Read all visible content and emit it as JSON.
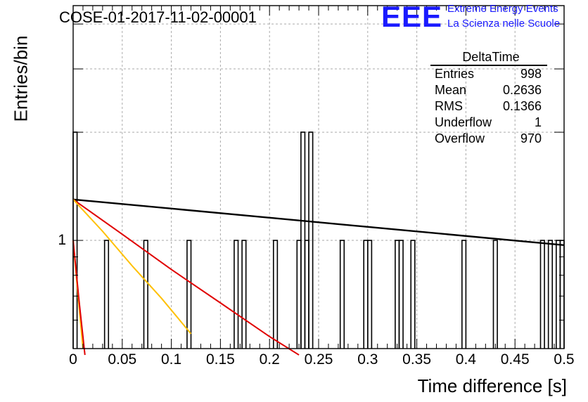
{
  "title": "COSE-01-2017-11-02-00001",
  "logo": {
    "text": "EEE",
    "line1": "Extreme Energy Events",
    "line2": "La Scienza nelle Scuole",
    "color": "#1a1aff"
  },
  "stats": {
    "title": "DeltaTime",
    "rows": [
      {
        "label": "Entries",
        "value": "998"
      },
      {
        "label": "Mean",
        "value": "0.2636"
      },
      {
        "label": "RMS",
        "value": "0.1366"
      },
      {
        "label": "Underflow",
        "value": "1"
      },
      {
        "label": "Overflow",
        "value": "970"
      }
    ]
  },
  "chart_data": {
    "type": "histogram",
    "title": "COSE-01-2017-11-02-00001",
    "xlabel": "Time difference [s]",
    "ylabel": "Entries/bin",
    "xlim": [
      0,
      0.5
    ],
    "ylim": [
      0.5,
      4.5
    ],
    "yscale": "log",
    "grid": true,
    "legend": "top-right",
    "x_tick_labels": [
      "0",
      "0.05",
      "0.1",
      "0.15",
      "0.2",
      "0.25",
      "0.3",
      "0.35",
      "0.4",
      "0.45",
      "0.5"
    ],
    "y_tick_labels": [
      "1"
    ],
    "bin_width": 0.004,
    "bins": [
      {
        "x": 0.0,
        "count": 2
      },
      {
        "x": 0.032,
        "count": 1
      },
      {
        "x": 0.072,
        "count": 1
      },
      {
        "x": 0.116,
        "count": 1
      },
      {
        "x": 0.164,
        "count": 1
      },
      {
        "x": 0.172,
        "count": 1
      },
      {
        "x": 0.204,
        "count": 1
      },
      {
        "x": 0.228,
        "count": 1
      },
      {
        "x": 0.232,
        "count": 2
      },
      {
        "x": 0.236,
        "count": 1
      },
      {
        "x": 0.24,
        "count": 2
      },
      {
        "x": 0.272,
        "count": 1
      },
      {
        "x": 0.296,
        "count": 1
      },
      {
        "x": 0.3,
        "count": 1
      },
      {
        "x": 0.328,
        "count": 1
      },
      {
        "x": 0.332,
        "count": 1
      },
      {
        "x": 0.344,
        "count": 1
      },
      {
        "x": 0.396,
        "count": 1
      },
      {
        "x": 0.428,
        "count": 1
      },
      {
        "x": 0.476,
        "count": 1
      },
      {
        "x": 0.484,
        "count": 1
      },
      {
        "x": 0.492,
        "count": 1
      },
      {
        "x": 0.496,
        "count": 1
      }
    ],
    "fits": [
      {
        "color": "#000000",
        "points": [
          [
            0,
            1.3
          ],
          [
            0.5,
            0.97
          ]
        ]
      },
      {
        "color": "#e00000",
        "points": [
          [
            0,
            1.3
          ],
          [
            0.05,
            1.04
          ],
          [
            0.1,
            0.83
          ],
          [
            0.15,
            0.67
          ],
          [
            0.2,
            0.54
          ],
          [
            0.23,
            0.48
          ]
        ]
      },
      {
        "color": "#ffc000",
        "points": [
          [
            0,
            1.3
          ],
          [
            0.03,
            1.06
          ],
          [
            0.06,
            0.85
          ],
          [
            0.09,
            0.69
          ],
          [
            0.12,
            0.55
          ]
        ]
      },
      {
        "color": "#ffc000",
        "points": [
          [
            0,
            1.0
          ],
          [
            0.005,
            0.7
          ],
          [
            0.01,
            0.5
          ]
        ]
      },
      {
        "color": "#e00000",
        "points": [
          [
            0,
            1.0
          ],
          [
            0.006,
            0.68
          ],
          [
            0.012,
            0.48
          ]
        ]
      }
    ]
  }
}
